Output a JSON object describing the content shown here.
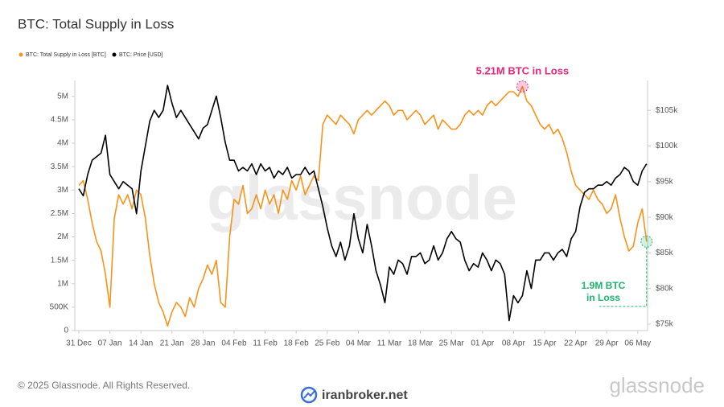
{
  "chart_data": {
    "type": "line",
    "title": "BTC: Total Supply in Loss",
    "x": [
      "31 Dec",
      null,
      null,
      null,
      null,
      null,
      null,
      "07 Jan",
      null,
      null,
      null,
      null,
      null,
      null,
      "14 Jan",
      null,
      null,
      null,
      null,
      null,
      null,
      "21 Jan",
      null,
      null,
      null,
      null,
      null,
      null,
      "28 Jan",
      null,
      null,
      null,
      null,
      null,
      null,
      "04 Feb",
      null,
      null,
      null,
      null,
      null,
      null,
      "11 Feb",
      null,
      null,
      null,
      null,
      null,
      null,
      "18 Feb",
      null,
      null,
      null,
      null,
      null,
      null,
      "25 Feb",
      null,
      null,
      null,
      null,
      null,
      null,
      "04 Mar",
      null,
      null,
      null,
      null,
      null,
      null,
      "11 Mar",
      null,
      null,
      null,
      null,
      null,
      null,
      "18 Mar",
      null,
      null,
      null,
      null,
      null,
      null,
      "25 Mar",
      null,
      null,
      null,
      null,
      null,
      null,
      "01 Apr",
      null,
      null,
      null,
      null,
      null,
      null,
      "08 Apr",
      null,
      null,
      null,
      null,
      null,
      null,
      "15 Apr",
      null,
      null,
      null,
      null,
      null,
      null,
      "22 Apr",
      null,
      null,
      null,
      null,
      null,
      null,
      "29 Apr",
      null,
      null,
      null,
      null,
      null,
      null,
      "06 May",
      null,
      null
    ],
    "series": [
      {
        "name": "BTC: Total Supply in Loss [BTC]",
        "color": "#f7931a",
        "axis": "y",
        "values": [
          3100000,
          3200000,
          2800000,
          2300000,
          1900000,
          1700000,
          1200000,
          500000,
          2400000,
          2900000,
          2700000,
          2900000,
          2600000,
          3000000,
          2900000,
          2400000,
          1600000,
          1000000,
          600000,
          400000,
          100000,
          400000,
          600000,
          500000,
          300000,
          700000,
          500000,
          900000,
          1100000,
          1400000,
          1200000,
          1500000,
          600000,
          500000,
          2000000,
          2800000,
          2700000,
          3100000,
          2500000,
          2600000,
          2900000,
          2600000,
          3000000,
          2700000,
          2900000,
          2500000,
          3000000,
          2800000,
          3200000,
          3000000,
          3300000,
          2900000,
          3100000,
          3300000,
          3200000,
          4400000,
          4600000,
          4500000,
          4400000,
          4600000,
          4500000,
          4400000,
          4200000,
          4500000,
          4600000,
          4700000,
          4600000,
          4700000,
          4800000,
          4900000,
          4800000,
          4600000,
          4700000,
          4700000,
          4500000,
          4600000,
          4700000,
          4600000,
          4400000,
          4500000,
          4600000,
          4300000,
          4500000,
          4400000,
          4300000,
          4300000,
          4400000,
          4600000,
          4700000,
          4600000,
          4700000,
          4600000,
          4800000,
          4900000,
          4800000,
          4900000,
          5000000,
          5100000,
          5100000,
          5000000,
          5210000,
          4900000,
          4800000,
          4600000,
          4400000,
          4300000,
          4400000,
          4200000,
          4300000,
          4100000,
          3800000,
          3400000,
          3100000,
          3000000,
          2900000,
          2800000,
          3000000,
          2800000,
          2700000,
          2500000,
          2600000,
          2900000,
          2400000,
          2000000,
          1700000,
          1800000,
          2300000,
          2600000,
          1900000
        ]
      },
      {
        "name": "BTC: Price [USD]",
        "color": "#000000",
        "axis": "y2",
        "values": [
          94000,
          93000,
          96000,
          98000,
          98500,
          99000,
          101500,
          96000,
          95000,
          94000,
          95000,
          94500,
          94000,
          90500,
          96500,
          100000,
          103500,
          105000,
          104000,
          105000,
          108500,
          106000,
          104000,
          105000,
          104000,
          103000,
          102000,
          101000,
          102500,
          103000,
          105000,
          107000,
          104000,
          100500,
          98000,
          98000,
          96500,
          97000,
          96500,
          97500,
          96000,
          97500,
          96500,
          97000,
          95500,
          96500,
          96000,
          97000,
          95500,
          96000,
          96000,
          97000,
          96000,
          96500,
          94000,
          91500,
          88500,
          86000,
          84500,
          86500,
          84000,
          86000,
          90500,
          87000,
          85000,
          89000,
          86000,
          82500,
          80500,
          78000,
          83000,
          82000,
          84000,
          83500,
          82000,
          84500,
          84500,
          85000,
          83500,
          84000,
          86000,
          84000,
          85000,
          87000,
          88000,
          87000,
          86500,
          84000,
          82500,
          83500,
          83000,
          85000,
          84000,
          82500,
          84000,
          83500,
          82000,
          75500,
          79000,
          78000,
          79000,
          82500,
          80000,
          84000,
          84000,
          85000,
          85000,
          84000,
          85000,
          85500,
          84500,
          87000,
          88000,
          91500,
          93500,
          94000,
          94000,
          94500,
          94500,
          95000,
          94500,
          95500,
          96000,
          97000,
          96500,
          95000,
          94500,
          96500,
          97500
        ]
      }
    ],
    "ylim": [
      0,
      5340000
    ],
    "yticks": [
      {
        "value": 0,
        "label": "0"
      },
      {
        "value": 500000,
        "label": "500K"
      },
      {
        "value": 1000000,
        "label": "1M"
      },
      {
        "value": 1500000,
        "label": "1.5M"
      },
      {
        "value": 2000000,
        "label": "2M"
      },
      {
        "value": 2500000,
        "label": "2.5M"
      },
      {
        "value": 3000000,
        "label": "3M"
      },
      {
        "value": 3500000,
        "label": "3.5M"
      },
      {
        "value": 4000000,
        "label": "4M"
      },
      {
        "value": 4500000,
        "label": "4.5M"
      },
      {
        "value": 5000000,
        "label": "5M"
      }
    ],
    "y2lim": [
      74100,
      109200
    ],
    "y2ticks": [
      {
        "value": 75000,
        "label": "$75k"
      },
      {
        "value": 80000,
        "label": "$80k"
      },
      {
        "value": 85000,
        "label": "$85k"
      },
      {
        "value": 90000,
        "label": "$90k"
      },
      {
        "value": 95000,
        "label": "$95k"
      },
      {
        "value": 100000,
        "label": "$100k"
      },
      {
        "value": 105000,
        "label": "$105k"
      }
    ],
    "annotation_peak": "5.21M BTC in Loss",
    "annotation_now": [
      "1.9M BTC",
      "in Loss"
    ],
    "watermark": "glassnode",
    "footer": "© 2025 Glassnode. All Rights Reserved.",
    "brand": "glassnode",
    "site": "iranbroker.net"
  }
}
